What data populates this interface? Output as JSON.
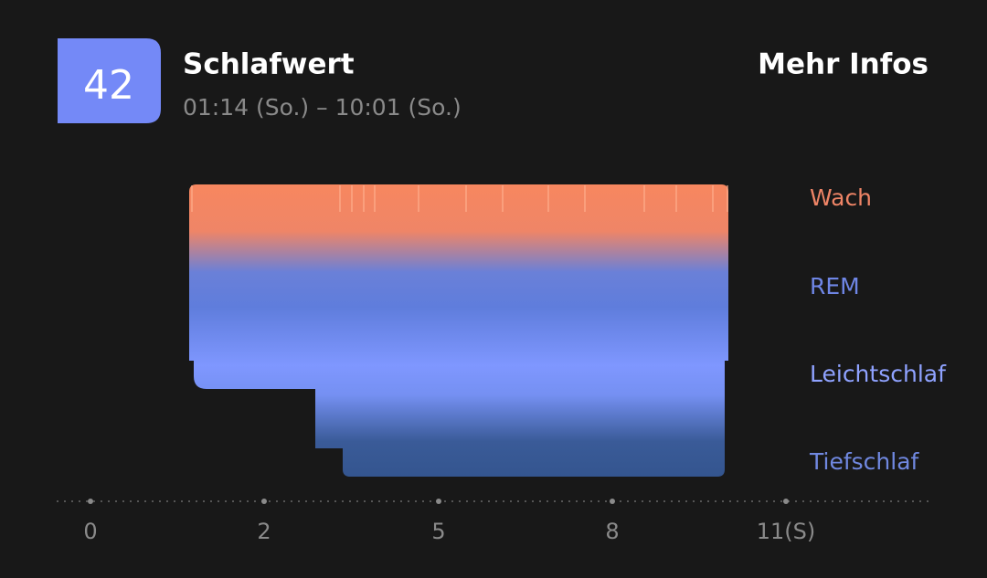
{
  "header": {
    "score": "42",
    "title": "Schlafwert",
    "time_range": "01:14 (So.) – 10:01 (So.)",
    "link": "Mehr Infos"
  },
  "stages": [
    "Wach",
    "REM",
    "Leichtschlaf",
    "Tiefschlaf"
  ],
  "axis": [
    "0",
    "2",
    "5",
    "8",
    "11(S)"
  ]
}
